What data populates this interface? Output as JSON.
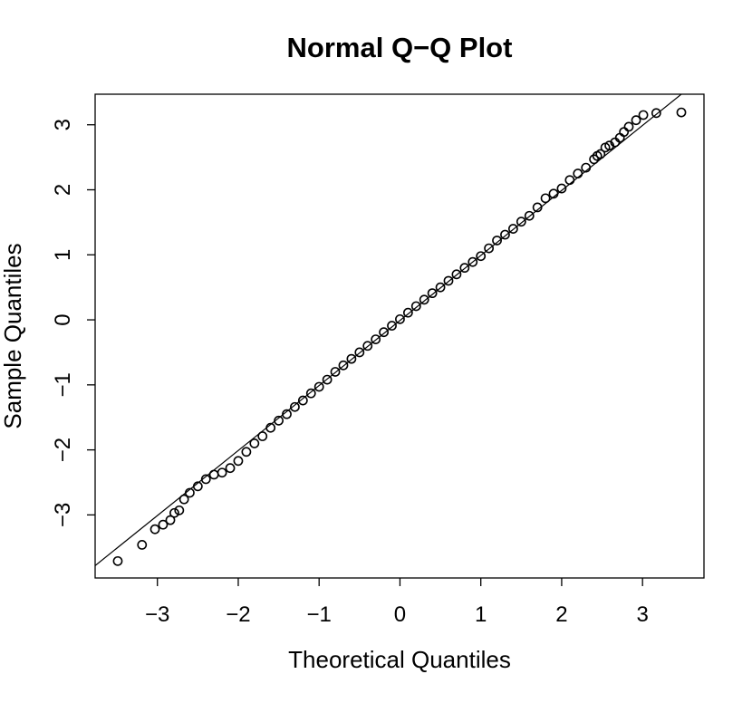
{
  "chart_data": {
    "type": "scatter",
    "title": "Normal Q−Q Plot",
    "x_label": "Theoretical Quantiles",
    "y_label": "Sample Quantiles",
    "xlim": [
      -3.77,
      3.76
    ],
    "ylim": [
      -3.97,
      3.47
    ],
    "xticks": [
      {
        "value": -3,
        "label": "−3"
      },
      {
        "value": -2,
        "label": "−2"
      },
      {
        "value": -1,
        "label": "−1"
      },
      0,
      1,
      2,
      3
    ],
    "yticks": [
      {
        "value": -3,
        "label": "−3"
      },
      {
        "value": -2,
        "label": "−2"
      },
      {
        "value": -1,
        "label": "−1"
      },
      0,
      1,
      2,
      3
    ],
    "color": "#000000",
    "reference_line": {
      "intercept": -0.01,
      "slope": 1.0
    },
    "series": [
      {
        "x": [
          -3.49,
          -3.19,
          -3.03,
          -2.93,
          -2.84,
          -2.79,
          -2.73,
          -2.67,
          -2.6,
          -2.5,
          -2.4,
          -2.3,
          -2.2,
          -2.1,
          -2.0,
          -1.9,
          -1.8,
          -1.7,
          -1.6,
          -1.5,
          -1.4,
          -1.3,
          -1.2,
          -1.1,
          -1.0,
          -0.9,
          -0.8,
          -0.7,
          -0.6,
          -0.5,
          -0.4,
          -0.3,
          -0.2,
          -0.1,
          0,
          0.1,
          0.2,
          0.3,
          0.4,
          0.5,
          0.6,
          0.7,
          0.8,
          0.9,
          1.0,
          1.1,
          1.2,
          1.3,
          1.4,
          1.5,
          1.6,
          1.7,
          1.8,
          1.9,
          2.0,
          2.1,
          2.2,
          2.3,
          2.4,
          2.44,
          2.48,
          2.54,
          2.59,
          2.66,
          2.72,
          2.77,
          2.83,
          2.92,
          3.01,
          3.17,
          3.48
        ],
        "y": [
          -3.71,
          -3.46,
          -3.22,
          -3.15,
          -3.08,
          -2.97,
          -2.93,
          -2.76,
          -2.66,
          -2.56,
          -2.45,
          -2.38,
          -2.35,
          -2.28,
          -2.17,
          -2.03,
          -1.9,
          -1.79,
          -1.66,
          -1.55,
          -1.45,
          -1.34,
          -1.24,
          -1.13,
          -1.03,
          -0.92,
          -0.8,
          -0.7,
          -0.6,
          -0.5,
          -0.4,
          -0.3,
          -0.19,
          -0.09,
          0.01,
          0.11,
          0.21,
          0.31,
          0.41,
          0.5,
          0.6,
          0.7,
          0.8,
          0.89,
          0.98,
          1.1,
          1.22,
          1.31,
          1.4,
          1.51,
          1.6,
          1.73,
          1.87,
          1.94,
          2.02,
          2.15,
          2.25,
          2.34,
          2.47,
          2.52,
          2.55,
          2.65,
          2.68,
          2.73,
          2.8,
          2.89,
          2.97,
          3.07,
          3.15,
          3.18,
          3.19
        ]
      }
    ]
  }
}
